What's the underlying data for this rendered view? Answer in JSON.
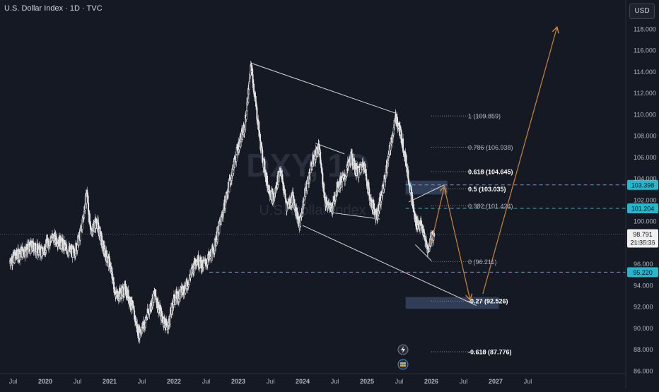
{
  "header": {
    "title": "U.S. Dollar Index · 1D · TVC"
  },
  "currency_button": "USD",
  "watermark": {
    "symbol": "DXY, 1D",
    "name": "U.S. Dollar Index"
  },
  "colors": {
    "background": "#151924",
    "candle_up": "#e6e6e6",
    "candle_down": "#e6e6e6",
    "trendline": "#d6d6d6",
    "projection": "#c8873a",
    "level_line": "#22b9cf",
    "level_label_bg": "#22b9cf",
    "price_label_bg": "#f0f0f0",
    "zone_fill": "#3d5171"
  },
  "chart_data": {
    "type": "candlestick",
    "symbol": "U.S. Dollar Index",
    "timeframe": "1D",
    "ylim": [
      85.5,
      120.5
    ],
    "y_ticks": [
      "118.000",
      "116.000",
      "114.000",
      "112.000",
      "110.000",
      "108.000",
      "106.000",
      "104.000",
      "102.000",
      "100.000",
      "98.000",
      "96.000",
      "94.000",
      "92.000",
      "90.000",
      "88.000",
      "86.000"
    ],
    "x_ticks": [
      "Jul",
      "2020",
      "Jul",
      "2021",
      "Jul",
      "2022",
      "Jul",
      "2023",
      "Jul",
      "2024",
      "Jul",
      "2025",
      "Jul",
      "2026",
      "Jul",
      "2027",
      "Jul"
    ],
    "price_path": [
      [
        2019.0,
        96.3
      ],
      [
        2019.2,
        97.2
      ],
      [
        2019.35,
        97.6
      ],
      [
        2019.5,
        97.1
      ],
      [
        2019.65,
        98.5
      ],
      [
        2019.75,
        98.2
      ],
      [
        2019.9,
        97.3
      ],
      [
        2020.0,
        97.0
      ],
      [
        2020.1,
        98.9
      ],
      [
        2020.2,
        102.8
      ],
      [
        2020.25,
        99.0
      ],
      [
        2020.35,
        100.0
      ],
      [
        2020.45,
        97.5
      ],
      [
        2020.55,
        96.0
      ],
      [
        2020.65,
        93.0
      ],
      [
        2020.8,
        93.6
      ],
      [
        2020.9,
        92.0
      ],
      [
        2021.0,
        89.5
      ],
      [
        2021.1,
        90.5
      ],
      [
        2021.25,
        93.2
      ],
      [
        2021.35,
        91.2
      ],
      [
        2021.45,
        90.0
      ],
      [
        2021.55,
        92.6
      ],
      [
        2021.75,
        94.0
      ],
      [
        2021.9,
        96.5
      ],
      [
        2022.0,
        95.8
      ],
      [
        2022.15,
        97.0
      ],
      [
        2022.3,
        100.5
      ],
      [
        2022.45,
        104.5
      ],
      [
        2022.55,
        107.0
      ],
      [
        2022.65,
        108.8
      ],
      [
        2022.75,
        114.6
      ],
      [
        2022.8,
        112.0
      ],
      [
        2022.9,
        107.0
      ],
      [
        2023.0,
        103.5
      ],
      [
        2023.1,
        102.0
      ],
      [
        2023.2,
        105.0
      ],
      [
        2023.3,
        101.5
      ],
      [
        2023.4,
        102.2
      ],
      [
        2023.5,
        99.6
      ],
      [
        2023.6,
        103.0
      ],
      [
        2023.7,
        105.5
      ],
      [
        2023.8,
        106.9
      ],
      [
        2023.9,
        102.0
      ],
      [
        2024.0,
        101.0
      ],
      [
        2024.1,
        103.5
      ],
      [
        2024.2,
        104.0
      ],
      [
        2024.3,
        106.0
      ],
      [
        2024.4,
        104.5
      ],
      [
        2024.5,
        105.5
      ],
      [
        2024.6,
        102.0
      ],
      [
        2024.7,
        100.5
      ],
      [
        2024.8,
        103.0
      ],
      [
        2024.9,
        106.5
      ],
      [
        2025.0,
        109.8
      ],
      [
        2025.1,
        107.5
      ],
      [
        2025.2,
        104.0
      ],
      [
        2025.3,
        100.0
      ],
      [
        2025.4,
        99.5
      ],
      [
        2025.5,
        97.2
      ],
      [
        2025.55,
        98.6
      ],
      [
        2025.6,
        98.8
      ]
    ],
    "last_price": "98.791",
    "countdown": "21:35:36",
    "price_levels": [
      {
        "label": "103.398",
        "value": 103.398
      },
      {
        "label": "101.204",
        "value": 101.204
      },
      {
        "label": "95.220",
        "value": 95.22
      }
    ],
    "fibonacci": [
      {
        "ratio": "1",
        "label": "1 (109.859)",
        "value": 109.859,
        "bold": false
      },
      {
        "ratio": "0.786",
        "label": "0.786 (106.938)",
        "value": 106.938,
        "bold": false
      },
      {
        "ratio": "0.618",
        "label": "0.618 (104.645)",
        "value": 104.645,
        "bold": true
      },
      {
        "ratio": "0.5",
        "label": "0.5 (103.035)",
        "value": 103.035,
        "bold": true
      },
      {
        "ratio": "0.382",
        "label": "0.382 (101.424)",
        "value": 101.424,
        "bold": false
      },
      {
        "ratio": "0",
        "label": "0 (96.211)",
        "value": 96.211,
        "bold": false
      },
      {
        "ratio": "-0.27",
        "label": "-0.27 (92.526)",
        "value": 92.526,
        "bold": true
      },
      {
        "ratio": "-0.618",
        "label": "-0.618 (87.776)",
        "value": 87.776,
        "bold": true
      }
    ],
    "trendlines": [
      [
        [
          2022.75,
          114.8
        ],
        [
          2025.0,
          110.1
        ]
      ],
      [
        [
          2023.55,
          99.6
        ],
        [
          2026.25,
          92.1
        ]
      ],
      [
        [
          2023.75,
          107.3
        ],
        [
          2024.2,
          106.3
        ]
      ],
      [
        [
          2024.0,
          100.8
        ],
        [
          2024.75,
          100.2
        ]
      ],
      [
        [
          2025.2,
          101.8
        ],
        [
          2025.75,
          103.4
        ]
      ],
      [
        [
          2025.3,
          97.8
        ],
        [
          2025.55,
          96.3
        ]
      ]
    ],
    "projection_path": [
      [
        2025.55,
        98.0
      ],
      [
        2025.75,
        103.2
      ],
      [
        2026.15,
        92.7
      ],
      [
        2026.35,
        93.2
      ],
      [
        2027.5,
        118.1
      ]
    ],
    "zones": [
      {
        "x": [
          2025.15,
          2025.8
        ],
        "y": [
          102.5,
          103.8
        ]
      },
      {
        "x": [
          2025.15,
          2026.6
        ],
        "y": [
          91.8,
          92.9
        ]
      }
    ]
  }
}
